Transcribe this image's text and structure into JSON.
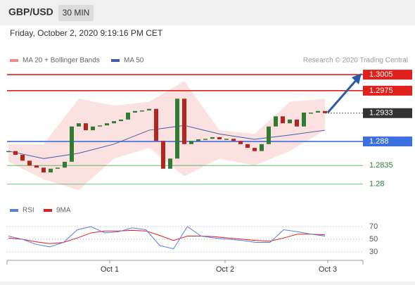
{
  "chart_data": {
    "type": "candlestick",
    "symbol": "GBP/USD",
    "timeframe": "30 MIN",
    "timestamp": "Friday, October 2, 2020 9:19:16 PM CET",
    "credit": "Research © 2020 Trading Central",
    "legend": [
      {
        "name": "MA 20 + Bollinger Bands",
        "color": "#f08a8a"
      },
      {
        "name": "MA 50",
        "color": "#3f5fa6"
      }
    ],
    "closes": [
      1.2862,
      1.2855,
      1.2844,
      1.2835,
      1.2831,
      1.2822,
      1.2829,
      1.2831,
      1.2842,
      1.2908,
      1.2914,
      1.2901,
      1.2908,
      1.291,
      1.2914,
      1.2918,
      1.2921,
      1.2934,
      1.2937,
      1.2938,
      1.2941,
      1.2881,
      1.2829,
      1.2848,
      1.296,
      1.2875,
      1.2881,
      1.2884,
      1.2885,
      1.2888,
      1.2884,
      1.2885,
      1.2881,
      1.2875,
      1.2868,
      1.2862,
      1.2875,
      1.2908,
      1.2927,
      1.2914,
      1.2921,
      1.2908,
      1.2934,
      1.2934,
      1.2937,
      1.2933
    ],
    "up_color": "#2f7d32",
    "down_color": "#b3261e",
    "indicator_x": [
      0,
      5,
      10,
      15,
      20,
      25,
      30,
      35,
      40,
      45
    ],
    "ma50": [
      1.2862,
      1.2848,
      1.2858,
      1.2875,
      1.2901,
      1.291,
      1.2894,
      1.2884,
      1.2892,
      1.2901
    ],
    "bb_upper": [
      1.2875,
      1.2875,
      1.296,
      1.2947,
      1.2954,
      1.2993,
      1.2901,
      1.2894,
      1.2954,
      1.296
    ],
    "bb_lower": [
      1.2842,
      1.2809,
      1.2789,
      1.2848,
      1.2868,
      1.2815,
      1.2848,
      1.2835,
      1.2862,
      1.2901
    ],
    "ylim": [
      1.2776,
      1.3092
    ],
    "xlim": [
      0,
      50.4
    ],
    "xticks": [
      {
        "value": 14.4,
        "label": "Oct 1"
      },
      {
        "value": 30.8,
        "label": "Oct 2"
      },
      {
        "value": 45.4,
        "label": "Oct 3"
      }
    ],
    "levels": [
      {
        "value": 1.3005,
        "color": "#e0201b",
        "style": "box"
      },
      {
        "value": 1.2975,
        "color": "#e0201b",
        "style": "box"
      },
      {
        "value": 1.2933,
        "color": "#333333",
        "style": "last"
      },
      {
        "value": 1.288,
        "color": "#3c6fe0",
        "style": "box"
      },
      {
        "value": 1.2835,
        "color": "#4caf50",
        "style": "text"
      },
      {
        "value": 1.28,
        "color": "#4caf50",
        "style": "text"
      }
    ],
    "rsi": {
      "legend": [
        {
          "name": "RSI",
          "color": "#5b7fe0"
        },
        {
          "name": "9MA",
          "color": "#e0201b"
        }
      ],
      "ylim": [
        0,
        100
      ],
      "yticks": [
        70,
        50,
        30
      ],
      "rsi": [
        55,
        50,
        42,
        38,
        45,
        65,
        70,
        60,
        62,
        68,
        65,
        40,
        35,
        70,
        55,
        52,
        50,
        48,
        45,
        45,
        65,
        62,
        58,
        55
      ],
      "ma9": [
        52,
        50,
        46,
        43,
        45,
        52,
        60,
        63,
        63,
        64,
        63,
        56,
        48,
        55,
        55,
        54,
        52,
        50,
        48,
        47,
        52,
        58,
        58,
        57
      ]
    }
  }
}
